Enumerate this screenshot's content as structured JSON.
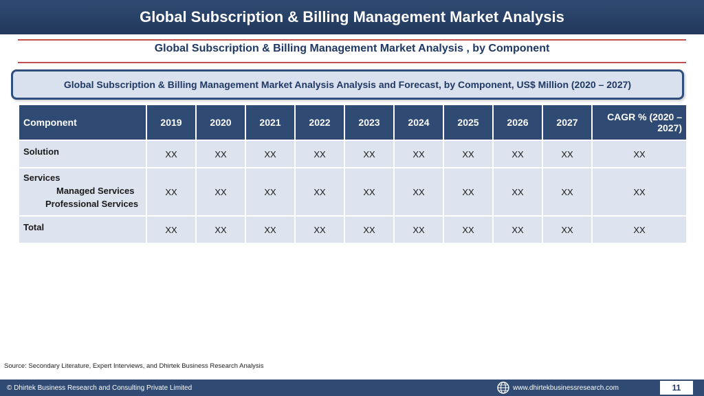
{
  "header": {
    "title": "Global Subscription & Billing Management Market Analysis"
  },
  "section": {
    "subtitle": "Global Subscription & Billing Management Market Analysis , by Component"
  },
  "callout": {
    "text": "Global Subscription & Billing Management Market Analysis  Analysis and Forecast, by Component, US$ Million (2020 – 2027)"
  },
  "table": {
    "headers": [
      "Component",
      "2019",
      "2020",
      "2021",
      "2022",
      "2023",
      "2024",
      "2025",
      "2026",
      "2027",
      "CAGR % (2020 – 2027)"
    ],
    "rows": [
      {
        "label": "Solution",
        "values": [
          "XX",
          "XX",
          "XX",
          "XX",
          "XX",
          "XX",
          "XX",
          "XX",
          "XX",
          "XX"
        ]
      },
      {
        "label": "Services",
        "sub1": "Managed Services",
        "sub2": "Professional Services",
        "values": [
          "XX",
          "XX",
          "XX",
          "XX",
          "XX",
          "XX",
          "XX",
          "XX",
          "XX",
          "XX"
        ]
      },
      {
        "label": "Total",
        "values": [
          "XX",
          "XX",
          "XX",
          "XX",
          "XX",
          "XX",
          "XX",
          "XX",
          "XX",
          "XX"
        ]
      }
    ]
  },
  "source": "Source: Secondary Literature, Expert Interviews, and Dhirtek Business Research Analysis",
  "footer": {
    "copyright": "© Dhirtek Business Research and Consulting Private Limited",
    "url": "www.dhirtekbusinessresearch.com",
    "page_number": "11",
    "icon": "globe-icon"
  },
  "colors": {
    "brand": "#2f4a73",
    "accent_rule": "#c0504d",
    "cell": "#dde3ef",
    "callout": "#d9e1ee"
  }
}
